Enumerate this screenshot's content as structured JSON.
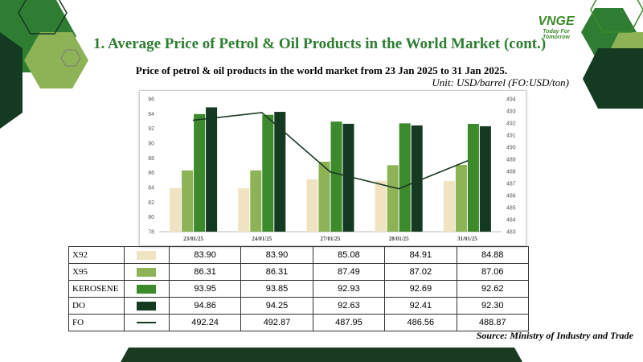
{
  "slide": {
    "title": "1. Average Price of Petrol & Oil Products in the World Market (cont.)",
    "subtitle": "Price of petrol & oil products in the world market from 23 Jan 2025 to 31 Jan 2025.",
    "unit": "Unit: USD/barrel (FO:USD/ton)",
    "source": "Source: Ministry of Industry and Trade"
  },
  "logo": {
    "name": "VNGE",
    "tagline": "Today For Tomorrow"
  },
  "colors": {
    "x92": "#efe3c2",
    "x95": "#8db356",
    "kerosene": "#3d8a2c",
    "do": "#153a22",
    "fo": "#1b3a22",
    "accent": "#2e7d32"
  },
  "chart_data": {
    "type": "bar",
    "categories": [
      "23/01/25",
      "24/01/25",
      "27/01/25",
      "28/01/25",
      "31/01/25"
    ],
    "series": [
      {
        "name": "X92",
        "type": "bar",
        "axis": "left",
        "values": [
          83.9,
          83.9,
          85.08,
          84.91,
          84.88
        ]
      },
      {
        "name": "X95",
        "type": "bar",
        "axis": "left",
        "values": [
          86.31,
          86.31,
          87.49,
          87.02,
          87.06
        ]
      },
      {
        "name": "KEROSENE",
        "type": "bar",
        "axis": "left",
        "values": [
          93.95,
          93.85,
          92.93,
          92.69,
          92.62
        ]
      },
      {
        "name": "DO",
        "type": "bar",
        "axis": "left",
        "values": [
          94.86,
          94.25,
          92.63,
          92.41,
          92.3
        ]
      },
      {
        "name": "FO",
        "type": "line",
        "axis": "right",
        "values": [
          492.24,
          492.87,
          487.95,
          486.56,
          488.87
        ]
      }
    ],
    "ylim": [
      78,
      96
    ],
    "yticks": [
      78,
      80,
      82,
      84,
      86,
      88,
      90,
      92,
      94,
      96
    ],
    "y2lim": [
      483,
      494
    ],
    "y2ticks": [
      483,
      484,
      485,
      486,
      487,
      488,
      489,
      490,
      491,
      492,
      493,
      494
    ],
    "legend": "table-below",
    "grid": false
  },
  "table": {
    "rows": [
      {
        "label": "X92",
        "values": [
          "83.90",
          "83.90",
          "85.08",
          "84.91",
          "84.88"
        ]
      },
      {
        "label": "X95",
        "values": [
          "86.31",
          "86.31",
          "87.49",
          "87.02",
          "87.06"
        ]
      },
      {
        "label": "KEROSENE",
        "values": [
          "93.95",
          "93.85",
          "92.93",
          "92.69",
          "92.62"
        ]
      },
      {
        "label": "DO",
        "values": [
          "94.86",
          "94.25",
          "92.63",
          "92.41",
          "92.30"
        ]
      },
      {
        "label": "FO",
        "values": [
          "492.24",
          "492.87",
          "487.95",
          "486.56",
          "488.87"
        ]
      }
    ]
  }
}
